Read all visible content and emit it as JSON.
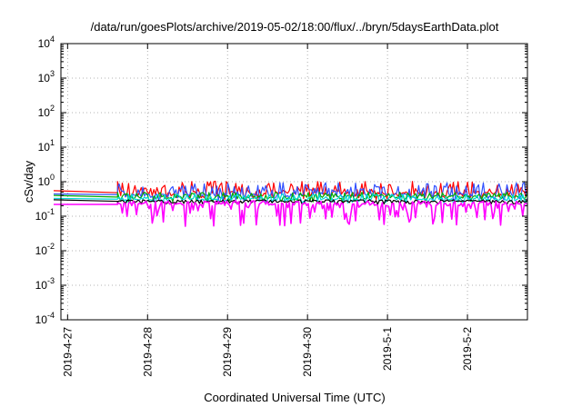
{
  "chart_data": {
    "type": "line",
    "title": "/data/run/goesPlots/archive/2019-05-02/18:00/flux/../bryn/5daysEarthData.plot",
    "xlabel": "Coordinated Universal Time (UTC)",
    "ylabel": "cSv/day",
    "yscale": "log",
    "ylim": [
      0.0001,
      10000
    ],
    "xlim": [
      "2019-04-26T22:00",
      "2019-05-02T18:00"
    ],
    "grid": true,
    "y_ticks": [
      {
        "base": "10",
        "exp": "-4"
      },
      {
        "base": "10",
        "exp": "-3"
      },
      {
        "base": "10",
        "exp": "-2"
      },
      {
        "base": "10",
        "exp": "-1"
      },
      {
        "base": "10",
        "exp": "0"
      },
      {
        "base": "10",
        "exp": "1"
      },
      {
        "base": "10",
        "exp": "2"
      },
      {
        "base": "10",
        "exp": "3"
      },
      {
        "base": "10",
        "exp": "4"
      }
    ],
    "x_ticks": [
      "2019-4-27",
      "2019-4-28",
      "2019-4-29",
      "2019-4-30",
      "2019-5-1",
      "2019-5-2"
    ],
    "x_tick_times": [
      "2019-04-27T00:00",
      "2019-04-28T00:00",
      "2019-04-29T00:00",
      "2019-04-30T00:00",
      "2019-05-01T00:00",
      "2019-05-02T00:00"
    ],
    "series": [
      {
        "color": "#ff0000",
        "base": 0.48,
        "start_value": 0.55,
        "band": [
          0.3,
          1.05
        ]
      },
      {
        "color": "#3050ff",
        "base": 0.42,
        "start_value": 0.44,
        "band": [
          0.28,
          0.95
        ]
      },
      {
        "color": "#00aa00",
        "base": 0.36,
        "start_value": 0.4,
        "band": [
          0.26,
          0.5
        ]
      },
      {
        "color": "#00d8d8",
        "base": 0.31,
        "start_value": 0.33,
        "band": [
          0.24,
          0.45
        ]
      },
      {
        "color": "#000000",
        "base": 0.27,
        "start_value": 0.3,
        "band": [
          0.22,
          0.3
        ]
      },
      {
        "color": "#ff00ff",
        "base": 0.22,
        "start_value": 0.22,
        "band": [
          0.05,
          0.28
        ]
      }
    ],
    "data_gap_end": "2019-04-27T15:00"
  }
}
